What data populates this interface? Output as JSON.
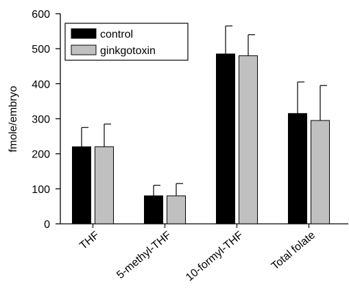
{
  "chart_data": {
    "type": "bar",
    "xlabel": "",
    "ylabel": "fmole/embryo",
    "ylim": [
      0,
      600
    ],
    "yticks": [
      0,
      100,
      200,
      300,
      400,
      500,
      600
    ],
    "grid": false,
    "legend_position": "top-left",
    "categories": [
      "THF",
      "5-methyl-THF",
      "10-formyl-THF",
      "Total folate"
    ],
    "series": [
      {
        "name": "control",
        "color": "#000000",
        "values": [
          220,
          80,
          485,
          315
        ],
        "errors": [
          55,
          30,
          80,
          90
        ]
      },
      {
        "name": "ginkgotoxin",
        "color": "#c0c0c0",
        "values": [
          220,
          80,
          480,
          295
        ],
        "errors": [
          65,
          35,
          60,
          100
        ]
      }
    ]
  }
}
